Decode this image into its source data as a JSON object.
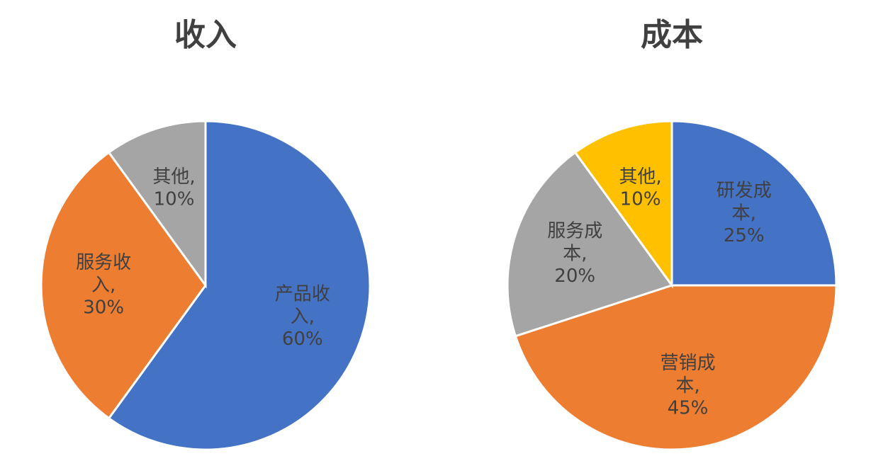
{
  "chart_data": [
    {
      "type": "pie",
      "title": "收入",
      "categories": [
        "产品收入,",
        "服务收入,",
        "其他,"
      ],
      "values": [
        60,
        30,
        10
      ],
      "value_labels": [
        "60%",
        "30%",
        "10%"
      ],
      "colors": [
        "#4472c4",
        "#ed7d31",
        "#a5a5a5"
      ]
    },
    {
      "type": "pie",
      "title": "成本",
      "categories": [
        "研发成本,",
        "营销成本,",
        "服务成本,",
        "其他,"
      ],
      "values": [
        25,
        45,
        20,
        10
      ],
      "value_labels": [
        "25%",
        "45%",
        "20%",
        "10%"
      ],
      "colors": [
        "#4472c4",
        "#ed7d31",
        "#a5a5a5",
        "#ffc000"
      ]
    }
  ]
}
